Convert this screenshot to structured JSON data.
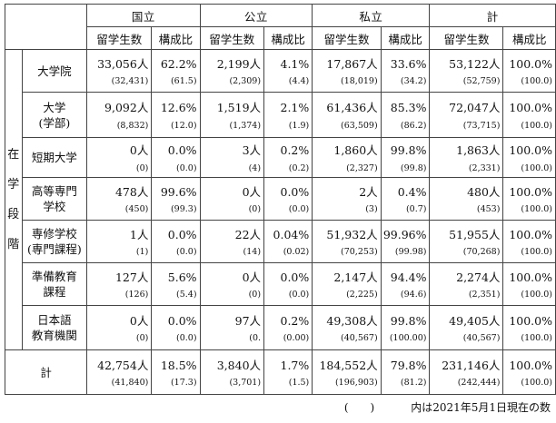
{
  "header": {
    "groups": [
      "国立",
      "公立",
      "私立",
      "計"
    ],
    "subcols": [
      "留学生数",
      "構成比"
    ]
  },
  "side_label": [
    "在",
    "学",
    "段",
    "階"
  ],
  "rows": [
    {
      "label": [
        "大学院"
      ],
      "cells": [
        {
          "count": "33,056人",
          "ratio": "62.2%",
          "prev_count": "(32,431)",
          "prev_ratio": "(61.5)"
        },
        {
          "count": "2,199人",
          "ratio": "4.1%",
          "prev_count": "(2,309)",
          "prev_ratio": "(4.4)"
        },
        {
          "count": "17,867人",
          "ratio": "33.6%",
          "prev_count": "(18,019)",
          "prev_ratio": "(34.2)"
        },
        {
          "count": "53,122人",
          "ratio": "100.0%",
          "prev_count": "(52,759)",
          "prev_ratio": "(100.0)"
        }
      ]
    },
    {
      "label": [
        "大学",
        "(学部)"
      ],
      "cells": [
        {
          "count": "9,092人",
          "ratio": "12.6%",
          "prev_count": "(8,832)",
          "prev_ratio": "(12.0)"
        },
        {
          "count": "1,519人",
          "ratio": "2.1%",
          "prev_count": "(1,374)",
          "prev_ratio": "(1.9)"
        },
        {
          "count": "61,436人",
          "ratio": "85.3%",
          "prev_count": "(63,509)",
          "prev_ratio": "(86.2)"
        },
        {
          "count": "72,047人",
          "ratio": "100.0%",
          "prev_count": "(73,715)",
          "prev_ratio": "(100.0)"
        }
      ]
    },
    {
      "label": [
        "短期大学"
      ],
      "cells": [
        {
          "count": "0人",
          "ratio": "0.0%",
          "prev_count": "(0)",
          "prev_ratio": "(0.0)"
        },
        {
          "count": "3人",
          "ratio": "0.2%",
          "prev_count": "(4)",
          "prev_ratio": "(0.2)"
        },
        {
          "count": "1,860人",
          "ratio": "99.8%",
          "prev_count": "(2,327)",
          "prev_ratio": "(99.8)"
        },
        {
          "count": "1,863人",
          "ratio": "100.0%",
          "prev_count": "(2,331)",
          "prev_ratio": "(100.0)"
        }
      ]
    },
    {
      "label": [
        "高等専門",
        "学校"
      ],
      "cells": [
        {
          "count": "478人",
          "ratio": "99.6%",
          "prev_count": "(450)",
          "prev_ratio": "(99.3)"
        },
        {
          "count": "0人",
          "ratio": "0.0%",
          "prev_count": "(0)",
          "prev_ratio": "(0.0)"
        },
        {
          "count": "2人",
          "ratio": "0.4%",
          "prev_count": "(3)",
          "prev_ratio": "(0.7)"
        },
        {
          "count": "480人",
          "ratio": "100.0%",
          "prev_count": "(453)",
          "prev_ratio": "(100.0)"
        }
      ]
    },
    {
      "label": [
        "専修学校",
        "(専門課程)"
      ],
      "cells": [
        {
          "count": "1人",
          "ratio": "0.0%",
          "prev_count": "(1)",
          "prev_ratio": "(0.0)"
        },
        {
          "count": "22人",
          "ratio": "0.04%",
          "prev_count": "(14)",
          "prev_ratio": "(0.02)"
        },
        {
          "count": "51,932人",
          "ratio": "99.96%",
          "prev_count": "(70,253)",
          "prev_ratio": "(99.98)"
        },
        {
          "count": "51,955人",
          "ratio": "100.0%",
          "prev_count": "(70,268)",
          "prev_ratio": "(100.0)"
        }
      ]
    },
    {
      "label": [
        "準備教育",
        "課程"
      ],
      "cells": [
        {
          "count": "127人",
          "ratio": "5.6%",
          "prev_count": "(126)",
          "prev_ratio": "(5.4)"
        },
        {
          "count": "0人",
          "ratio": "0.0%",
          "prev_count": "(0)",
          "prev_ratio": "(0.0)"
        },
        {
          "count": "2,147人",
          "ratio": "94.4%",
          "prev_count": "(2,225)",
          "prev_ratio": "(94.6)"
        },
        {
          "count": "2,274人",
          "ratio": "100.0%",
          "prev_count": "(2,351)",
          "prev_ratio": "(100.0)"
        }
      ]
    },
    {
      "label": [
        "日本語",
        "教育機関"
      ],
      "cells": [
        {
          "count": "0人",
          "ratio": "0.0%",
          "prev_count": "(0)",
          "prev_ratio": "(0.0)"
        },
        {
          "count": "97人",
          "ratio": "0.2%",
          "prev_count": "(0.",
          "prev_ratio": "(0.00)"
        },
        {
          "count": "49,308人",
          "ratio": "99.8%",
          "prev_count": "(40,567)",
          "prev_ratio": "(100.00)"
        },
        {
          "count": "49,405人",
          "ratio": "100.0%",
          "prev_count": "(40,567)",
          "prev_ratio": "(100.0)"
        }
      ]
    }
  ],
  "total_row": {
    "label": [
      "計"
    ],
    "cells": [
      {
        "count": "42,754人",
        "ratio": "18.5%",
        "prev_count": "(41,840)",
        "prev_ratio": "(17.3)"
      },
      {
        "count": "3,840人",
        "ratio": "1.7%",
        "prev_count": "(3,701)",
        "prev_ratio": "(1.5)"
      },
      {
        "count": "184,552人",
        "ratio": "79.8%",
        "prev_count": "(196,903)",
        "prev_ratio": "(81.2)"
      },
      {
        "count": "231,146人",
        "ratio": "100.0%",
        "prev_count": "(242,444)",
        "prev_ratio": "(100.0)"
      }
    ]
  },
  "footnote": {
    "paren": "(　　)",
    "text": "内は2021年5月1日現在の数"
  }
}
